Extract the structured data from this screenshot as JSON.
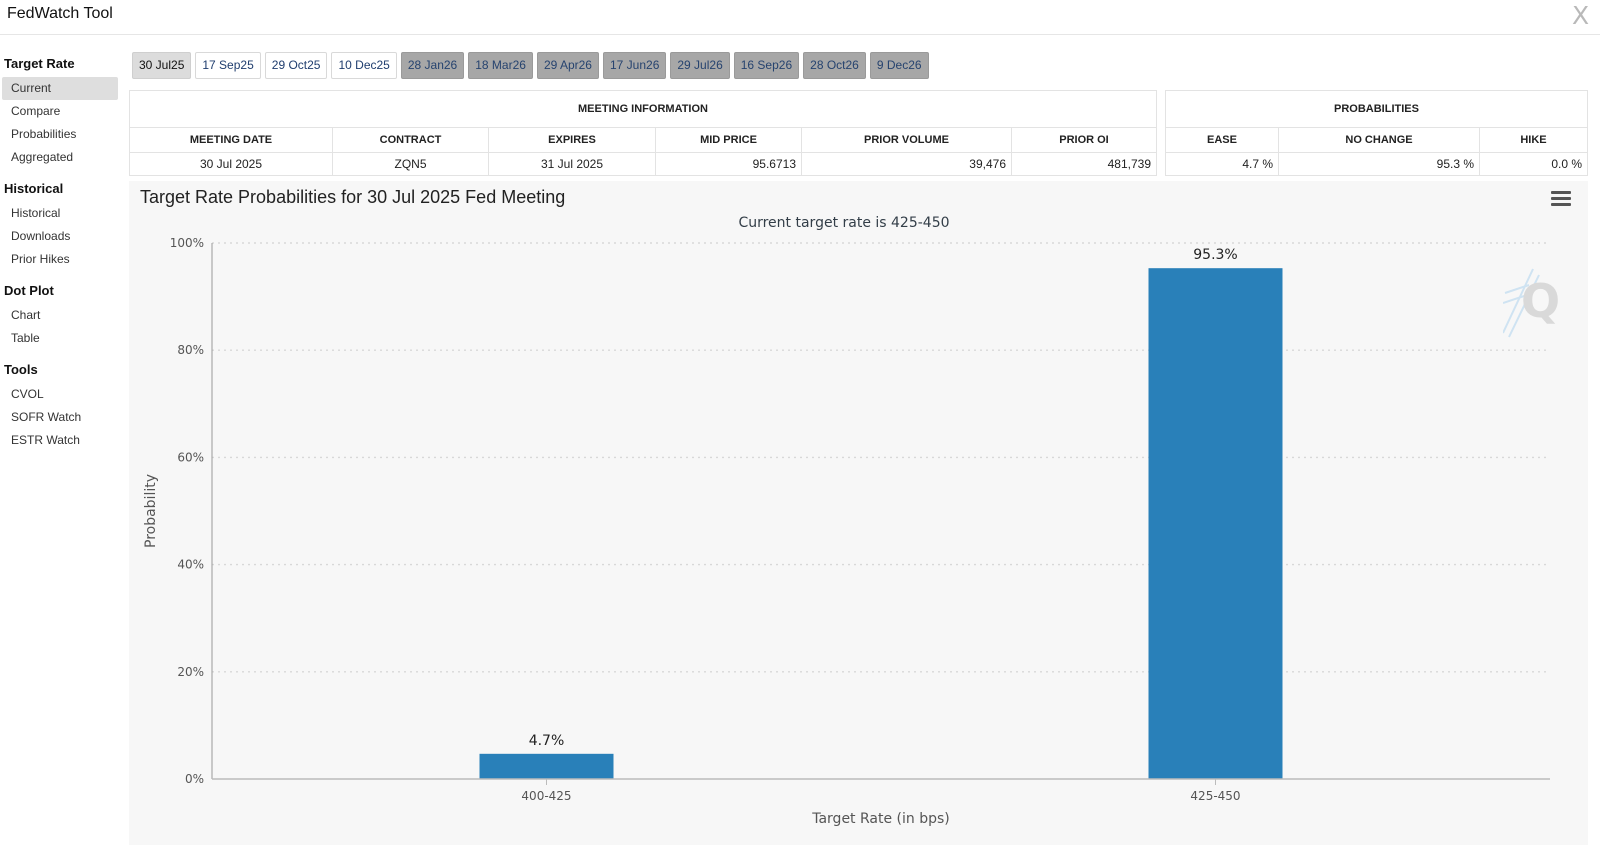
{
  "app": {
    "title": "FedWatch Tool",
    "close_label": "X"
  },
  "sidebar": {
    "sections": [
      {
        "title": "Target Rate",
        "items": [
          {
            "label": "Current",
            "active": true
          },
          {
            "label": "Compare"
          },
          {
            "label": "Probabilities"
          },
          {
            "label": "Aggregated"
          }
        ]
      },
      {
        "title": "Historical",
        "items": [
          {
            "label": "Historical"
          },
          {
            "label": "Downloads"
          },
          {
            "label": "Prior Hikes"
          }
        ]
      },
      {
        "title": "Dot Plot",
        "items": [
          {
            "label": "Chart"
          },
          {
            "label": "Table"
          }
        ]
      },
      {
        "title": "Tools",
        "items": [
          {
            "label": "CVOL"
          },
          {
            "label": "SOFR Watch"
          },
          {
            "label": "ESTR Watch"
          }
        ]
      }
    ]
  },
  "tabs": [
    {
      "label": "30 Jul25",
      "state": "selected"
    },
    {
      "label": "17 Sep25",
      "state": "normal"
    },
    {
      "label": "29 Oct25",
      "state": "normal"
    },
    {
      "label": "10 Dec25",
      "state": "normal"
    },
    {
      "label": "28 Jan26",
      "state": "disabled"
    },
    {
      "label": "18 Mar26",
      "state": "disabled"
    },
    {
      "label": "29 Apr26",
      "state": "disabled"
    },
    {
      "label": "17 Jun26",
      "state": "disabled"
    },
    {
      "label": "29 Jul26",
      "state": "disabled"
    },
    {
      "label": "16 Sep26",
      "state": "disabled"
    },
    {
      "label": "28 Oct26",
      "state": "disabled"
    },
    {
      "label": "9 Dec26",
      "state": "disabled"
    }
  ],
  "meeting_info": {
    "caption": "MEETING INFORMATION",
    "headers": {
      "meeting_date": "MEETING DATE",
      "contract": "CONTRACT",
      "expires": "EXPIRES",
      "mid_price": "MID PRICE",
      "prior_volume": "PRIOR VOLUME",
      "prior_oi": "PRIOR OI"
    },
    "row": {
      "meeting_date": "30 Jul 2025",
      "contract": "ZQN5",
      "expires": "31 Jul 2025",
      "mid_price": "95.6713",
      "prior_volume": "39,476",
      "prior_oi": "481,739"
    }
  },
  "probabilities": {
    "caption": "PROBABILITIES",
    "headers": {
      "ease": "EASE",
      "no_change": "NO CHANGE",
      "hike": "HIKE"
    },
    "row": {
      "ease": "4.7 %",
      "no_change": "95.3 %",
      "hike": "0.0 %"
    }
  },
  "chart_data": {
    "type": "bar",
    "title": "Target Rate Probabilities for 30 Jul 2025 Fed Meeting",
    "subtitle": "Current target rate is 425-450",
    "xlabel": "Target Rate (in bps)",
    "ylabel": "Probability",
    "categories": [
      "400-425",
      "425-450"
    ],
    "values": [
      4.7,
      95.3
    ],
    "value_labels": [
      "4.7%",
      "95.3%"
    ],
    "ylim": [
      0,
      100
    ],
    "yticks": [
      0,
      20,
      40,
      60,
      80,
      100
    ],
    "ytick_labels": [
      "0%",
      "20%",
      "40%",
      "60%",
      "80%",
      "100%"
    ],
    "grid": true,
    "bar_color": "#2980b9"
  }
}
